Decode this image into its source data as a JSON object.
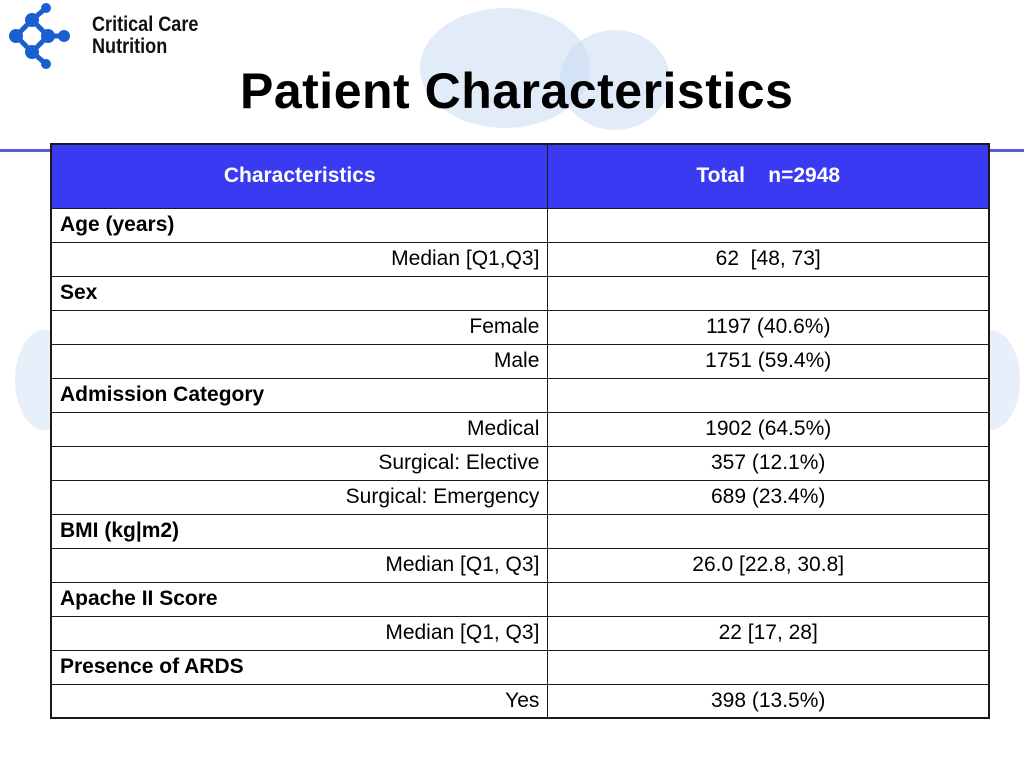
{
  "brand": {
    "line1": "Critical Care",
    "line2": "Nutrition",
    "logo_icon": "molecule-dots-logo-icon",
    "logo_color": "#1a5fd0"
  },
  "title": "Patient Characteristics",
  "colors": {
    "header_bg": "#3a3af3",
    "header_text": "#ffffff",
    "rule": "#5b5bd8"
  },
  "table": {
    "headers": [
      "Characteristics",
      "Total    n=2948"
    ],
    "rows": [
      {
        "type": "category",
        "label": "Age (years)",
        "value": ""
      },
      {
        "type": "sub",
        "label": "Median [Q1,Q3]",
        "value": "62  [48, 73]"
      },
      {
        "type": "category",
        "label": "Sex",
        "value": ""
      },
      {
        "type": "sub",
        "label": "Female",
        "value": "1197 (40.6%)"
      },
      {
        "type": "sub",
        "label": "Male",
        "value": "1751 (59.4%)"
      },
      {
        "type": "category",
        "label": "Admission Category",
        "value": ""
      },
      {
        "type": "sub",
        "label": "Medical",
        "value": "1902 (64.5%)"
      },
      {
        "type": "sub",
        "label": "Surgical: Elective",
        "value": "357 (12.1%)"
      },
      {
        "type": "sub",
        "label": "Surgical: Emergency",
        "value": "689 (23.4%)"
      },
      {
        "type": "category",
        "label": "BMI (kg|m2)",
        "value": ""
      },
      {
        "type": "sub",
        "label": "Median [Q1, Q3]",
        "value": "26.0 [22.8, 30.8]"
      },
      {
        "type": "category",
        "label": "Apache II Score",
        "value": ""
      },
      {
        "type": "sub",
        "label": "Median [Q1, Q3]",
        "value": "22 [17, 28]"
      },
      {
        "type": "category",
        "label": "Presence of ARDS",
        "value": ""
      },
      {
        "type": "sub",
        "label": "Yes",
        "value": "398 (13.5%)"
      }
    ]
  }
}
